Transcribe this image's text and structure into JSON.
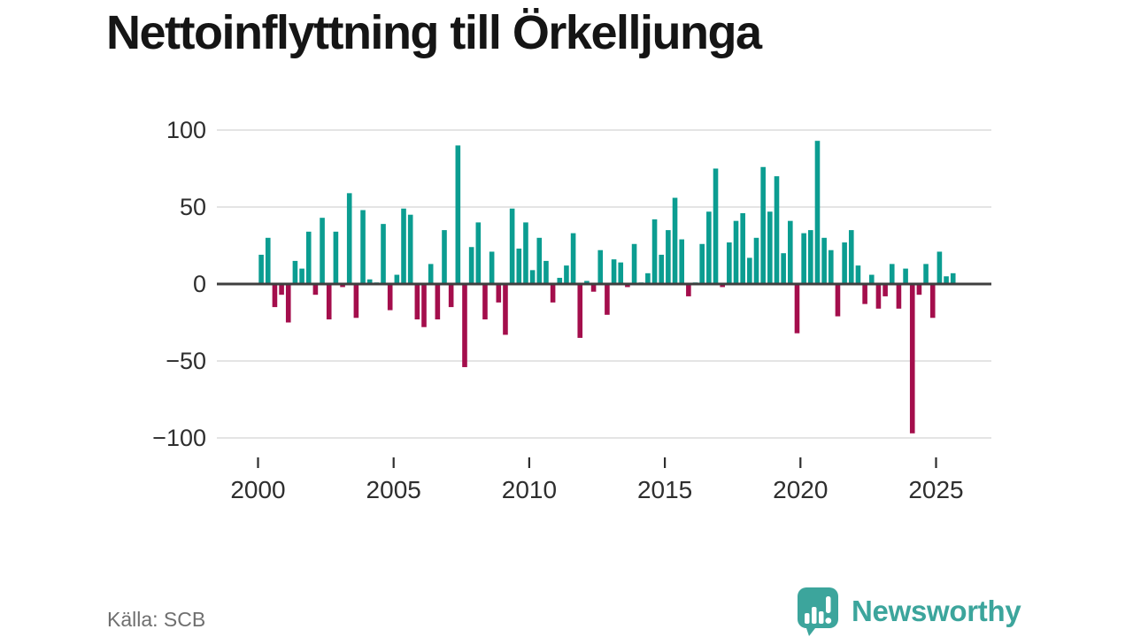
{
  "title": "Nettoinflyttning till Örkelljunga",
  "source_label": "Källa: SCB",
  "brand": {
    "name": "Newsworthy",
    "icon": "bar-chart-speech-bubble-icon"
  },
  "colors": {
    "positive": "#0b9d91",
    "negative": "#a40e4c",
    "grid": "#dcdcdc",
    "zero_axis": "#3f3f3f",
    "tick_label": "#2e2e2e",
    "source_text": "#6f6f6f",
    "brand_teal": "#3ca59c"
  },
  "chart_data": {
    "type": "bar",
    "title": "Nettoinflyttning till Örkelljunga",
    "frequency": "quarterly",
    "x_start": {
      "year": 2000,
      "quarter": 1
    },
    "x_end": {
      "year": 2025,
      "quarter": 3
    },
    "values": [
      19,
      30,
      -15,
      -7,
      -25,
      15,
      10,
      34,
      -7,
      43,
      -23,
      34,
      -2,
      59,
      -22,
      48,
      3,
      1,
      39,
      -17,
      6,
      49,
      45,
      -23,
      -28,
      13,
      -23,
      35,
      -15,
      90,
      -54,
      24,
      40,
      -23,
      21,
      -12,
      -33,
      49,
      23,
      40,
      9,
      30,
      15,
      -12,
      4,
      12,
      33,
      -35,
      2,
      -5,
      22,
      -20,
      16,
      14,
      -2,
      26,
      1,
      7,
      42,
      19,
      35,
      56,
      29,
      -8,
      1,
      26,
      47,
      75,
      -2,
      27,
      41,
      46,
      17,
      30,
      76,
      47,
      70,
      20,
      41,
      -32,
      33,
      35,
      93,
      30,
      22,
      -21,
      27,
      35,
      12,
      -13,
      6,
      -16,
      -8,
      13,
      -16,
      10,
      -97,
      -7,
      13,
      -22,
      21,
      5,
      7
    ],
    "x_tick_labels": [
      "2000",
      "2005",
      "2010",
      "2015",
      "2020",
      "2025"
    ],
    "y_ticks": [
      100,
      50,
      0,
      -50,
      -100
    ],
    "ylim": [
      -110,
      110
    ],
    "grid": "horizontal",
    "legend": "none"
  }
}
